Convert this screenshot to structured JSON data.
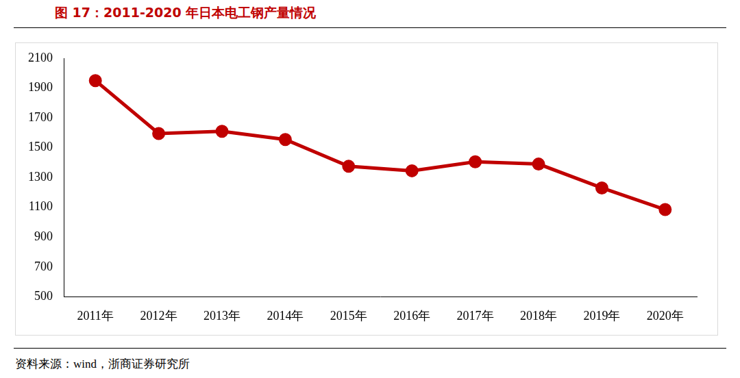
{
  "chart_data": {
    "type": "line",
    "title": "图 17：2011-2020 年日本电工钢产量情况",
    "source": "资料来源：wind，浙商证券研究所",
    "categories": [
      "2011年",
      "2012年",
      "2013年",
      "2014年",
      "2015年",
      "2016年",
      "2017年",
      "2018年",
      "2019年",
      "2020年"
    ],
    "values": [
      1950,
      1595,
      1610,
      1555,
      1375,
      1345,
      1405,
      1390,
      1230,
      1085
    ],
    "color": "#c00000",
    "marker": "circle",
    "line_style": "solid",
    "ylim": [
      500,
      2100
    ],
    "yticks": [
      500,
      700,
      900,
      1100,
      1300,
      1500,
      1700,
      1900,
      2100
    ],
    "grid": false,
    "legend": false
  }
}
